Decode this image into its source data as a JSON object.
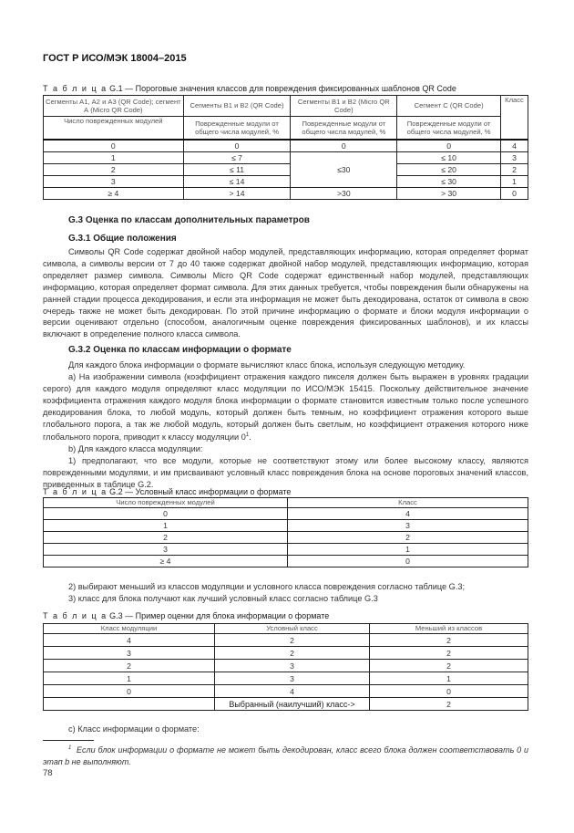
{
  "header": {
    "title": "ГОСТ Р ИСО/МЭК 18004–2015"
  },
  "table_g1": {
    "caption_prefix": "Т а б л и ц а",
    "caption": "G.1 — Пороговые значения классов для повреждения фиксированных шаблонов QR Code",
    "col_headers": [
      "Сегменты А1, А2 и А3 (QR Code); сегмент А (Micro QR Code)",
      "Сегменты В1 и В2 (QR Code)",
      "Сегменты В1 и В2 (Micro QR Code)",
      "Сегмент С (QR Code)",
      "Класс"
    ],
    "sub_headers": [
      "Число поврежденных модулей",
      "Поврежденные модули от общего числа модулей, %",
      "Поврежденные модули от общего числа модулей, %",
      "Поврежденные модули от общего числа модулей, %"
    ],
    "rows": [
      [
        "0",
        "0",
        "0",
        "0",
        "4"
      ],
      [
        "1",
        "≤ 7",
        "",
        "≤ 10",
        "3"
      ],
      [
        "2",
        "≤ 11",
        "≤30",
        "≤ 20",
        "2"
      ],
      [
        "3",
        "≤ 14",
        "",
        "≤ 30",
        "1"
      ],
      [
        "≥ 4",
        "> 14",
        ">30",
        "> 30",
        "0"
      ]
    ]
  },
  "section_g3": {
    "title": "G.3 Оценка по классам дополнительных параметров"
  },
  "section_g31": {
    "title": "G.3.1 Общие положения",
    "para": "Символы QR Code содержат двойной набор модулей, представляющих информацию, которая определяет формат символа, а символы версии от 7 до 40 также содержат двойной набор модулей, представляющих информацию, которая определяет размер символа. Символы Micro QR Code содержат единственный набор модулей, представляющих информацию, которая определяет формат символа. Для этих данных требуется, чтобы повреждения были обнаружены на ранней стадии процесса декодирования, и если эта информация не может быть декодирована, остаток от символа в свою очередь также не может быть декодирован. По этой причине информацию о формате и блоки модуля информации о версии оценивают отдельно (способом, аналогичным оценке повреждения фиксированных шаблонов), и их классы включают в определение полного класса символа."
  },
  "section_g32": {
    "title": "G.3.2 Оценка по классам информации о формате",
    "p1": "Для каждого блока информации о формате вычисляют класс блока, используя следующую методику.",
    "p2": "а) На изображении символа (коэффициент отражения каждого пикселя должен быть выражен в уровнях градации серого) для каждого модуля определяют класс модуляции по ИСО/МЭК 15415. Поскольку действительное значение коэффициента отражения каждого модуля блока информации о формате становится известным только после успешного декодирования блока, то любой модуль, который должен быть темным, но коэффициент отражения которого выше глобального порога, а так же любой модуль, который должен быть светлым, но коэффициент отражения которого ниже глобального порога, приводит к классу модуляции 0",
    "p2_sup": "1",
    "p2_end": ".",
    "p3": "b) Для каждого класса модуляции:",
    "p4": "1) предполагают, что все модули, которые не соответствуют этому или более высокому классу, являются поврежденными модулями, и им присваивают условный класс повреждения блока на основе пороговых значений классов, приведенных в таблице G.2.",
    "p5": "2) выбирают меньший из классов модуляции и условного класса повреждения согласно таблице G.3;",
    "p6": "3) класс для блока получают как лучший условный класс согласно таблице G.3",
    "p7": "с) Класс информации о формате:"
  },
  "table_g2": {
    "caption_prefix": "Т а б л и ц а",
    "caption": "G.2 — Условный класс информации о формате",
    "col_headers": [
      "Число поврежденных модулей",
      "Класс"
    ],
    "rows": [
      [
        "0",
        "4"
      ],
      [
        "1",
        "3"
      ],
      [
        "2",
        "2"
      ],
      [
        "3",
        "1"
      ],
      [
        "≥ 4",
        "0"
      ]
    ]
  },
  "table_g3": {
    "caption_prefix": "Т а б л и ц а",
    "caption": "G.3 — Пример оценки для блока информации о формате",
    "col_headers": [
      "Класс модуляции",
      "Условный класс",
      "Меньший из классов"
    ],
    "rows": [
      [
        "4",
        "2",
        "2"
      ],
      [
        "3",
        "2",
        "2"
      ],
      [
        "2",
        "3",
        "2"
      ],
      [
        "1",
        "3",
        "1"
      ],
      [
        "0",
        "4",
        "0"
      ],
      [
        "",
        "Выбранный (наилучший) класс->",
        "2"
      ]
    ]
  },
  "footnote": {
    "mark": "1",
    "text": "Если блок информации о формате не может быть декодирован, класс всего блока должен соответствовать 0 и этап b не выполняют."
  },
  "page_number": "78"
}
